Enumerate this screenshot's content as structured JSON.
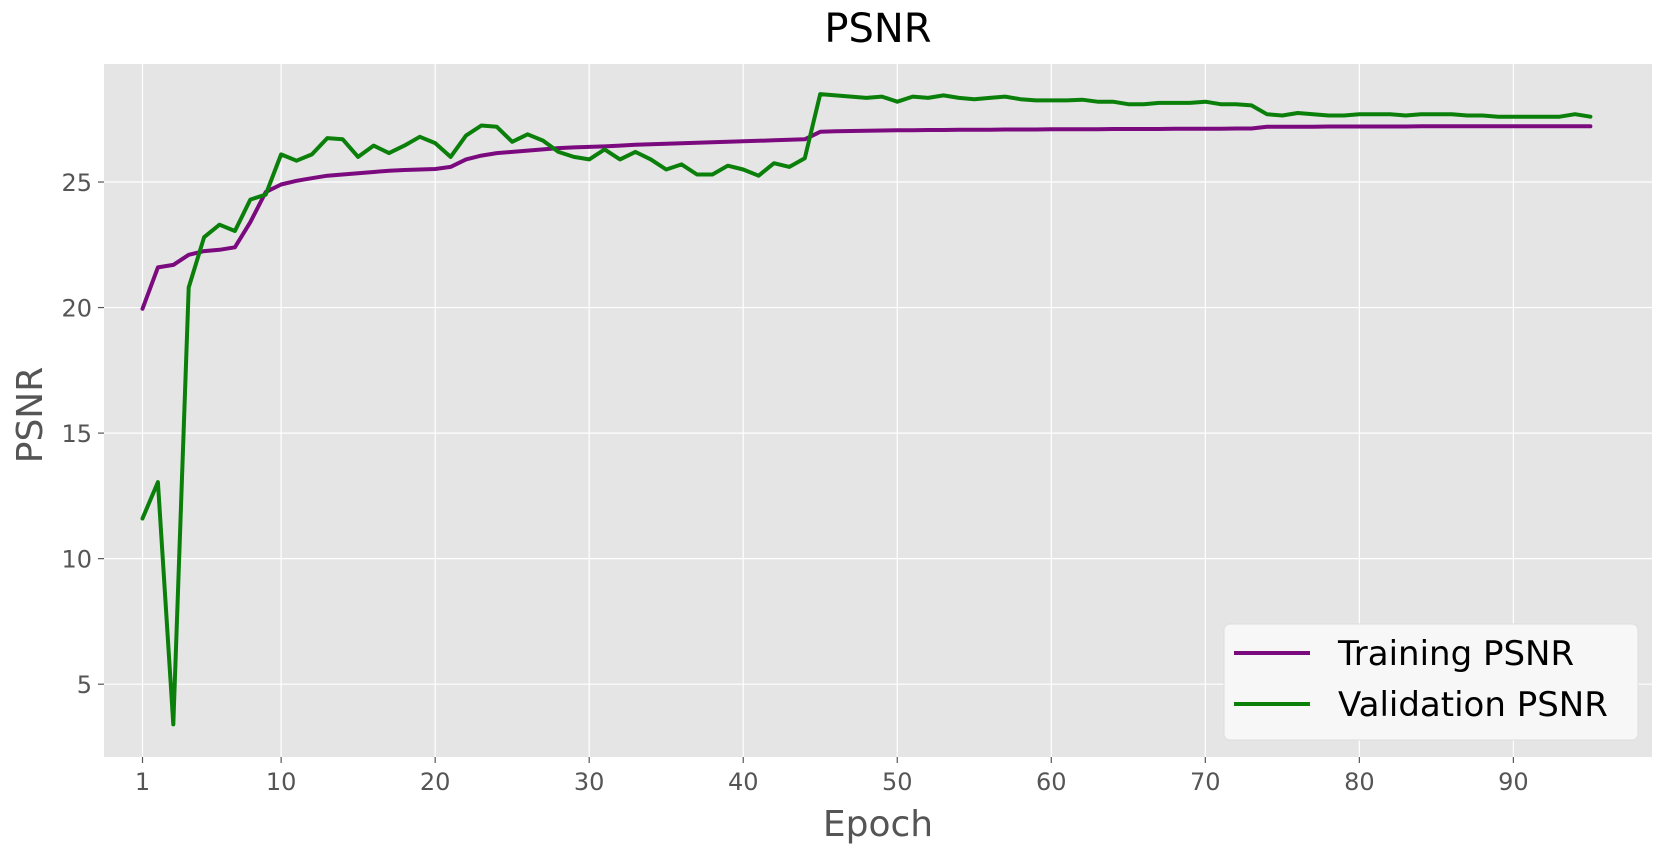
{
  "chart_data": {
    "type": "line",
    "title": "PSNR",
    "xlabel": "Epoch",
    "ylabel": "PSNR",
    "xlim": [
      -1.5,
      99
    ],
    "ylim": [
      2.1,
      29.7
    ],
    "xticks": [
      1,
      10,
      20,
      30,
      40,
      50,
      60,
      70,
      80,
      90
    ],
    "yticks": [
      5,
      10,
      15,
      20,
      25
    ],
    "grid": true,
    "legend_position": "lower-right",
    "x": [
      1,
      2,
      3,
      4,
      5,
      6,
      7,
      8,
      9,
      10,
      11,
      12,
      13,
      14,
      15,
      16,
      17,
      18,
      19,
      20,
      21,
      22,
      23,
      24,
      25,
      26,
      27,
      28,
      29,
      30,
      31,
      32,
      33,
      34,
      35,
      36,
      37,
      38,
      39,
      40,
      41,
      42,
      43,
      44,
      45,
      46,
      47,
      48,
      49,
      50,
      51,
      52,
      53,
      54,
      55,
      56,
      57,
      58,
      59,
      60,
      61,
      62,
      63,
      64,
      65,
      66,
      67,
      68,
      69,
      70,
      71,
      72,
      73,
      74,
      75,
      76,
      77,
      78,
      79,
      80,
      81,
      82,
      83,
      84,
      85,
      86,
      87,
      88,
      89,
      90,
      91,
      92,
      93,
      94,
      95
    ],
    "series": [
      {
        "name": "Training PSNR",
        "color": "#7b0a7f",
        "values": [
          19.95,
          21.6,
          21.7,
          22.1,
          22.25,
          22.3,
          22.4,
          23.4,
          24.6,
          24.9,
          25.05,
          25.15,
          25.25,
          25.3,
          25.35,
          25.4,
          25.45,
          25.48,
          25.5,
          25.52,
          25.6,
          25.9,
          26.05,
          26.15,
          26.2,
          26.25,
          26.3,
          26.35,
          26.38,
          26.4,
          26.42,
          26.45,
          26.48,
          26.5,
          26.52,
          26.54,
          26.56,
          26.58,
          26.6,
          26.62,
          26.64,
          26.66,
          26.68,
          26.7,
          27.0,
          27.02,
          27.03,
          27.04,
          27.05,
          27.06,
          27.06,
          27.07,
          27.07,
          27.08,
          27.08,
          27.08,
          27.09,
          27.09,
          27.09,
          27.1,
          27.1,
          27.1,
          27.1,
          27.11,
          27.11,
          27.11,
          27.11,
          27.12,
          27.12,
          27.12,
          27.12,
          27.13,
          27.13,
          27.2,
          27.2,
          27.2,
          27.2,
          27.21,
          27.21,
          27.21,
          27.21,
          27.21,
          27.21,
          27.22,
          27.22,
          27.22,
          27.22,
          27.22,
          27.22,
          27.22,
          27.22,
          27.22,
          27.22,
          27.22,
          27.22
        ]
      },
      {
        "name": "Validation PSNR",
        "color": "#0a7f0a",
        "values": [
          11.6,
          13.05,
          3.4,
          20.8,
          22.8,
          23.3,
          23.05,
          24.3,
          24.5,
          26.1,
          25.85,
          26.1,
          26.75,
          26.7,
          26.0,
          26.45,
          26.15,
          26.45,
          26.8,
          26.55,
          26.0,
          26.85,
          27.25,
          27.2,
          26.6,
          26.9,
          26.65,
          26.2,
          26.0,
          25.9,
          26.3,
          25.9,
          26.2,
          25.9,
          25.5,
          25.7,
          25.3,
          25.3,
          25.65,
          25.5,
          25.25,
          25.75,
          25.6,
          25.95,
          28.5,
          28.45,
          28.4,
          28.35,
          28.4,
          28.2,
          28.4,
          28.35,
          28.45,
          28.35,
          28.3,
          28.35,
          28.4,
          28.3,
          28.25,
          28.25,
          28.25,
          28.28,
          28.2,
          28.2,
          28.1,
          28.1,
          28.15,
          28.15,
          28.15,
          28.2,
          28.1,
          28.1,
          28.05,
          27.7,
          27.65,
          27.75,
          27.7,
          27.65,
          27.65,
          27.7,
          27.7,
          27.7,
          27.65,
          27.7,
          27.7,
          27.7,
          27.65,
          27.65,
          27.6,
          27.6,
          27.6,
          27.6,
          27.6,
          27.7,
          27.6
        ]
      }
    ]
  }
}
